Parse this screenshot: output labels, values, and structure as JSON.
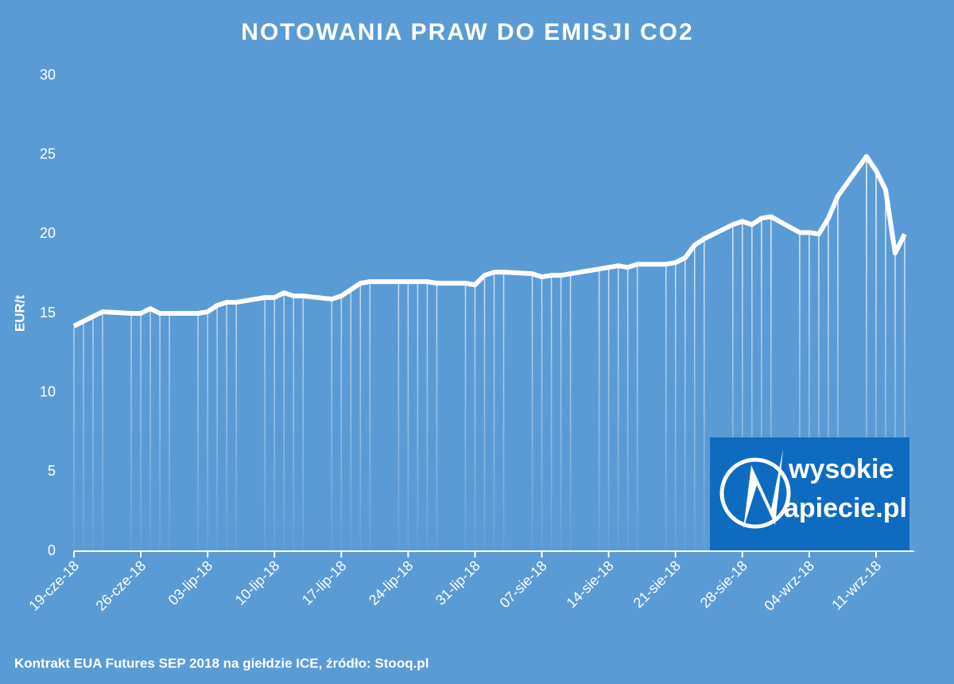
{
  "chart_data": {
    "type": "line",
    "title": "NOTOWANIA PRAW DO EMISJI CO2",
    "y_label": "EUR/t",
    "source": "Kontrakt EUA Futures SEP 2018 na giełdzie ICE, źródło: Stooq.pl",
    "logo": {
      "line1": "wysokie",
      "line2": "apiecie.pl"
    },
    "x": [
      "2018-06-19",
      "2018-06-20",
      "2018-06-21",
      "2018-06-22",
      "2018-06-25",
      "2018-06-26",
      "2018-06-27",
      "2018-06-28",
      "2018-06-29",
      "2018-07-02",
      "2018-07-03",
      "2018-07-04",
      "2018-07-05",
      "2018-07-06",
      "2018-07-09",
      "2018-07-10",
      "2018-07-11",
      "2018-07-12",
      "2018-07-13",
      "2018-07-16",
      "2018-07-17",
      "2018-07-18",
      "2018-07-19",
      "2018-07-20",
      "2018-07-23",
      "2018-07-24",
      "2018-07-25",
      "2018-07-26",
      "2018-07-27",
      "2018-07-30",
      "2018-07-31",
      "2018-08-01",
      "2018-08-02",
      "2018-08-03",
      "2018-08-06",
      "2018-08-07",
      "2018-08-08",
      "2018-08-09",
      "2018-08-10",
      "2018-08-13",
      "2018-08-14",
      "2018-08-15",
      "2018-08-16",
      "2018-08-17",
      "2018-08-20",
      "2018-08-21",
      "2018-08-22",
      "2018-08-23",
      "2018-08-24",
      "2018-08-27",
      "2018-08-28",
      "2018-08-29",
      "2018-08-30",
      "2018-08-31",
      "2018-09-03",
      "2018-09-04",
      "2018-09-05",
      "2018-09-06",
      "2018-09-07",
      "2018-09-10",
      "2018-09-11",
      "2018-09-12",
      "2018-09-13",
      "2018-09-14"
    ],
    "series": [
      {
        "name": "EUA",
        "color": "#ffffff",
        "values": [
          14.2,
          14.5,
          14.8,
          15.1,
          15.0,
          15.0,
          15.3,
          15.0,
          15.0,
          15.0,
          15.1,
          15.5,
          15.7,
          15.7,
          16.0,
          16.0,
          16.3,
          16.1,
          16.1,
          15.9,
          16.1,
          16.5,
          16.9,
          17.0,
          17.0,
          17.0,
          17.0,
          17.0,
          16.9,
          16.9,
          16.8,
          17.4,
          17.6,
          17.6,
          17.5,
          17.3,
          17.4,
          17.4,
          17.5,
          17.8,
          17.9,
          18.0,
          17.9,
          18.1,
          18.1,
          18.2,
          18.5,
          19.3,
          19.7,
          20.6,
          20.8,
          20.6,
          21.0,
          21.1,
          20.1,
          20.1,
          20.0,
          21.0,
          22.4,
          24.9,
          24.0,
          22.8,
          18.8,
          20.0
        ]
      }
    ],
    "xlim": [
      "2018-06-19",
      "2018-09-15"
    ],
    "xticks": [
      {
        "value": "2018-06-19",
        "label": "19-cze-18"
      },
      {
        "value": "2018-06-26",
        "label": "26-cze-18"
      },
      {
        "value": "2018-07-03",
        "label": "03-lip-18"
      },
      {
        "value": "2018-07-10",
        "label": "10-lip-18"
      },
      {
        "value": "2018-07-17",
        "label": "17-lip-18"
      },
      {
        "value": "2018-07-24",
        "label": "24-lip-18"
      },
      {
        "value": "2018-07-31",
        "label": "31-lip-18"
      },
      {
        "value": "2018-08-07",
        "label": "07-sie-18"
      },
      {
        "value": "2018-08-14",
        "label": "14-sie-18"
      },
      {
        "value": "2018-08-21",
        "label": "21-sie-18"
      },
      {
        "value": "2018-08-28",
        "label": "28-sie-18"
      },
      {
        "value": "2018-09-04",
        "label": "04-wrz-18"
      },
      {
        "value": "2018-09-11",
        "label": "11-wrz-18"
      }
    ],
    "ylim": [
      0,
      30
    ],
    "yticks": [
      0,
      5,
      10,
      15,
      20,
      25,
      30
    ],
    "grid": false
  }
}
